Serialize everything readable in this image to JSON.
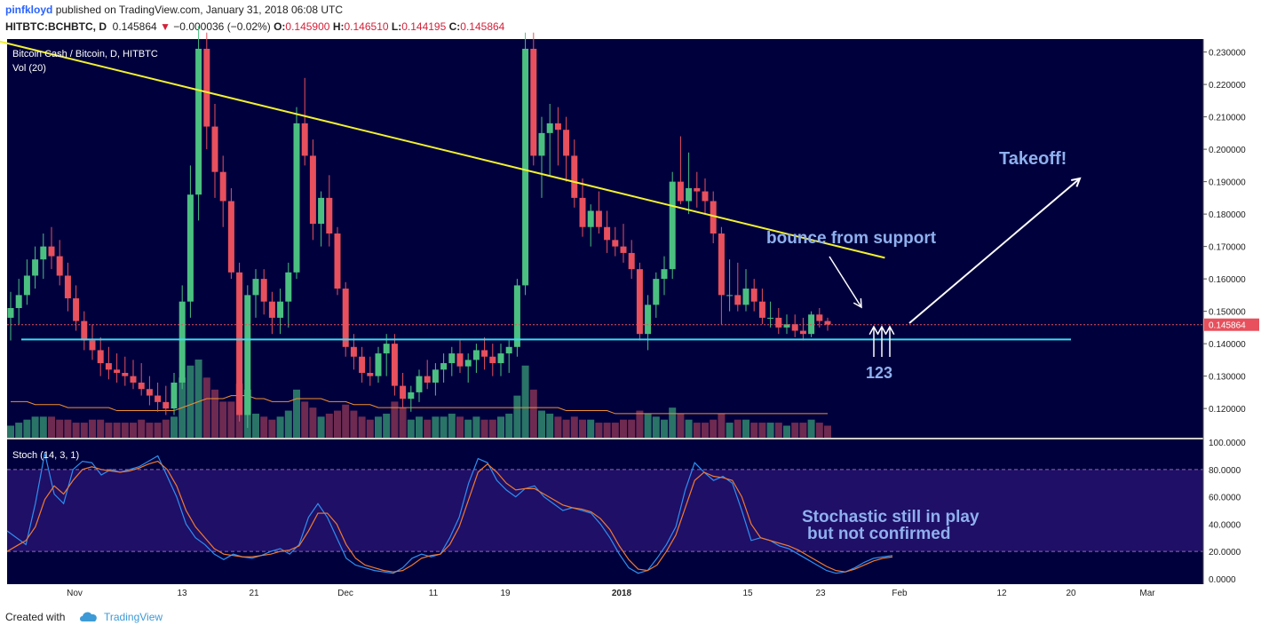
{
  "header": {
    "user": "pinfkloyd",
    "published": "published on TradingView.com, January 31, 2018 06:08 UTC",
    "symbol": "HITBTC:BCHBTC, D",
    "last": "0.145864",
    "change_arrow": "▼",
    "change": "−0.000036 (−0.02%)",
    "o_label": "O:",
    "o": "0.145900",
    "h_label": "H:",
    "h": "0.146510",
    "l_label": "L:",
    "l": "0.144195",
    "c_label": "C:",
    "c": "0.145864"
  },
  "colors": {
    "background": "#00003c",
    "up": "#4bbf80",
    "down": "#e7505c",
    "trendline": "#f2f230",
    "support": "#3bdbf1",
    "annotation": "#8fb0ee",
    "stoch_k": "#2f8ff0",
    "stoch_d": "#f07a30",
    "stoch_band": "#1f0f66"
  },
  "chart_data": [
    {
      "type": "candlestick",
      "title": "Bitcoin Cash / Bitcoin, D, HITBTC",
      "indicator_label": "Vol (20)",
      "ylim": [
        0.111,
        0.234
      ],
      "price_axis": [
        "0.230000",
        "0.220000",
        "0.210000",
        "0.200000",
        "0.190000",
        "0.180000",
        "0.170000",
        "0.160000",
        "0.150000",
        "0.140000",
        "0.130000",
        "0.120000"
      ],
      "last_price_label": "0.145864",
      "x_axis": [
        "Nov",
        "13",
        "21",
        "Dec",
        "11",
        "19",
        "2018",
        "15",
        "23",
        "Feb",
        "12",
        "20",
        "Mar"
      ],
      "candles": [
        [
          0.148,
          0.156,
          0.141,
          0.151,
          4
        ],
        [
          0.151,
          0.16,
          0.146,
          0.155,
          5
        ],
        [
          0.155,
          0.166,
          0.152,
          0.161,
          6
        ],
        [
          0.161,
          0.17,
          0.157,
          0.166,
          7
        ],
        [
          0.166,
          0.174,
          0.16,
          0.17,
          7
        ],
        [
          0.17,
          0.176,
          0.163,
          0.167,
          7
        ],
        [
          0.167,
          0.172,
          0.158,
          0.161,
          6
        ],
        [
          0.161,
          0.165,
          0.15,
          0.154,
          6
        ],
        [
          0.154,
          0.158,
          0.144,
          0.147,
          5
        ],
        [
          0.147,
          0.15,
          0.138,
          0.141,
          5
        ],
        [
          0.141,
          0.146,
          0.135,
          0.138,
          6
        ],
        [
          0.138,
          0.142,
          0.13,
          0.134,
          6
        ],
        [
          0.134,
          0.139,
          0.129,
          0.132,
          5
        ],
        [
          0.132,
          0.137,
          0.128,
          0.131,
          5
        ],
        [
          0.131,
          0.136,
          0.127,
          0.13,
          5
        ],
        [
          0.13,
          0.135,
          0.126,
          0.128,
          5
        ],
        [
          0.128,
          0.134,
          0.124,
          0.126,
          6
        ],
        [
          0.126,
          0.13,
          0.121,
          0.124,
          5
        ],
        [
          0.124,
          0.128,
          0.119,
          0.122,
          5
        ],
        [
          0.122,
          0.127,
          0.118,
          0.12,
          6
        ],
        [
          0.12,
          0.131,
          0.118,
          0.128,
          7
        ],
        [
          0.128,
          0.158,
          0.126,
          0.153,
          20
        ],
        [
          0.153,
          0.195,
          0.148,
          0.186,
          24
        ],
        [
          0.186,
          0.238,
          0.178,
          0.231,
          26
        ],
        [
          0.231,
          0.236,
          0.2,
          0.207,
          20
        ],
        [
          0.207,
          0.214,
          0.185,
          0.193,
          16
        ],
        [
          0.193,
          0.198,
          0.176,
          0.184,
          12
        ],
        [
          0.184,
          0.188,
          0.16,
          0.162,
          12
        ],
        [
          0.162,
          0.165,
          0.116,
          0.118,
          18
        ],
        [
          0.118,
          0.158,
          0.114,
          0.155,
          16
        ],
        [
          0.155,
          0.163,
          0.148,
          0.16,
          8
        ],
        [
          0.16,
          0.163,
          0.149,
          0.153,
          7
        ],
        [
          0.153,
          0.156,
          0.143,
          0.148,
          6
        ],
        [
          0.148,
          0.157,
          0.143,
          0.153,
          7
        ],
        [
          0.153,
          0.165,
          0.145,
          0.162,
          9
        ],
        [
          0.162,
          0.213,
          0.16,
          0.208,
          16
        ],
        [
          0.208,
          0.222,
          0.195,
          0.198,
          12
        ],
        [
          0.198,
          0.203,
          0.172,
          0.177,
          10
        ],
        [
          0.177,
          0.187,
          0.17,
          0.185,
          7
        ],
        [
          0.185,
          0.192,
          0.17,
          0.174,
          8
        ],
        [
          0.174,
          0.176,
          0.155,
          0.157,
          9
        ],
        [
          0.157,
          0.159,
          0.136,
          0.139,
          11
        ],
        [
          0.139,
          0.143,
          0.132,
          0.136,
          9
        ],
        [
          0.136,
          0.139,
          0.128,
          0.131,
          7
        ],
        [
          0.131,
          0.136,
          0.127,
          0.13,
          6
        ],
        [
          0.13,
          0.139,
          0.128,
          0.137,
          7
        ],
        [
          0.137,
          0.143,
          0.13,
          0.14,
          8
        ],
        [
          0.14,
          0.143,
          0.124,
          0.127,
          12
        ],
        [
          0.127,
          0.131,
          0.12,
          0.123,
          10
        ],
        [
          0.123,
          0.127,
          0.119,
          0.125,
          6
        ],
        [
          0.125,
          0.132,
          0.122,
          0.13,
          7
        ],
        [
          0.13,
          0.135,
          0.126,
          0.128,
          6
        ],
        [
          0.128,
          0.134,
          0.124,
          0.132,
          7
        ],
        [
          0.132,
          0.137,
          0.128,
          0.134,
          7
        ],
        [
          0.134,
          0.139,
          0.13,
          0.137,
          8
        ],
        [
          0.137,
          0.141,
          0.131,
          0.133,
          7
        ],
        [
          0.133,
          0.137,
          0.128,
          0.135,
          6
        ],
        [
          0.135,
          0.14,
          0.131,
          0.138,
          7
        ],
        [
          0.138,
          0.142,
          0.132,
          0.136,
          6
        ],
        [
          0.136,
          0.14,
          0.13,
          0.134,
          6
        ],
        [
          0.134,
          0.14,
          0.13,
          0.137,
          7
        ],
        [
          0.137,
          0.141,
          0.131,
          0.139,
          8
        ],
        [
          0.139,
          0.16,
          0.136,
          0.158,
          14
        ],
        [
          0.158,
          0.236,
          0.155,
          0.231,
          24
        ],
        [
          0.231,
          0.236,
          0.195,
          0.198,
          16
        ],
        [
          0.198,
          0.21,
          0.185,
          0.205,
          9
        ],
        [
          0.205,
          0.214,
          0.192,
          0.208,
          8
        ],
        [
          0.208,
          0.213,
          0.195,
          0.206,
          7
        ],
        [
          0.206,
          0.21,
          0.19,
          0.198,
          6
        ],
        [
          0.198,
          0.203,
          0.182,
          0.185,
          7
        ],
        [
          0.185,
          0.191,
          0.173,
          0.176,
          6
        ],
        [
          0.176,
          0.183,
          0.17,
          0.181,
          6
        ],
        [
          0.181,
          0.187,
          0.174,
          0.176,
          5
        ],
        [
          0.176,
          0.181,
          0.168,
          0.172,
          5
        ],
        [
          0.172,
          0.176,
          0.167,
          0.17,
          5
        ],
        [
          0.17,
          0.177,
          0.165,
          0.168,
          6
        ],
        [
          0.168,
          0.172,
          0.16,
          0.163,
          6
        ],
        [
          0.163,
          0.165,
          0.141,
          0.143,
          9
        ],
        [
          0.143,
          0.155,
          0.138,
          0.152,
          8
        ],
        [
          0.152,
          0.162,
          0.148,
          0.16,
          7
        ],
        [
          0.16,
          0.167,
          0.155,
          0.163,
          6
        ],
        [
          0.163,
          0.193,
          0.16,
          0.19,
          10
        ],
        [
          0.19,
          0.204,
          0.183,
          0.184,
          8
        ],
        [
          0.184,
          0.199,
          0.18,
          0.188,
          6
        ],
        [
          0.188,
          0.193,
          0.182,
          0.187,
          5
        ],
        [
          0.187,
          0.191,
          0.18,
          0.184,
          5
        ],
        [
          0.184,
          0.187,
          0.171,
          0.174,
          6
        ],
        [
          0.174,
          0.176,
          0.146,
          0.155,
          8
        ],
        [
          0.155,
          0.166,
          0.15,
          0.155,
          5
        ],
        [
          0.155,
          0.165,
          0.15,
          0.152,
          6
        ],
        [
          0.152,
          0.163,
          0.15,
          0.157,
          6
        ],
        [
          0.157,
          0.16,
          0.15,
          0.153,
          5
        ],
        [
          0.153,
          0.157,
          0.146,
          0.148,
          5
        ],
        [
          0.148,
          0.153,
          0.145,
          0.148,
          5
        ],
        [
          0.148,
          0.151,
          0.143,
          0.145,
          5
        ],
        [
          0.145,
          0.149,
          0.143,
          0.146,
          4
        ],
        [
          0.146,
          0.149,
          0.142,
          0.144,
          5
        ],
        [
          0.144,
          0.148,
          0.141,
          0.143,
          5
        ],
        [
          0.143,
          0.15,
          0.142,
          0.149,
          6
        ],
        [
          0.149,
          0.151,
          0.145,
          0.147,
          5
        ],
        [
          0.147,
          0.148,
          0.144,
          0.1459,
          4
        ]
      ],
      "volume_ma": [
        12,
        12,
        12,
        11,
        11,
        11,
        11,
        10,
        10,
        10,
        10,
        10,
        10,
        9,
        9,
        9,
        9,
        9,
        9,
        9,
        9,
        10,
        11,
        12,
        13,
        13,
        13,
        14,
        14,
        14,
        13,
        13,
        12,
        12,
        12,
        13,
        13,
        13,
        13,
        12,
        12,
        12,
        11,
        11,
        11,
        10,
        10,
        10,
        10,
        10,
        10,
        10,
        10,
        10,
        10,
        10,
        10,
        10,
        10,
        10,
        10,
        10,
        10,
        10,
        10,
        10,
        10,
        10,
        9,
        9,
        9,
        9,
        9,
        9,
        8,
        8,
        8,
        8,
        8,
        8,
        8,
        8,
        8,
        8,
        8,
        8,
        8,
        8,
        8,
        8,
        8,
        8,
        8,
        8,
        8,
        8,
        8,
        8,
        8,
        8,
        8
      ],
      "trendline": [
        [
          -5,
          0.2355
        ],
        [
          107,
          0.1665
        ]
      ],
      "support_level": 0.1413,
      "annotations": {
        "takeoff": "Takeoff!",
        "bounce": "bounce from support",
        "markers": "123"
      }
    },
    {
      "type": "line",
      "title": "Stoch (14, 3, 1)",
      "ylim": [
        -4,
        102
      ],
      "y_axis": [
        "100.0000",
        "80.0000",
        "60.0000",
        "40.0000",
        "20.0000",
        "0.0000"
      ],
      "band": [
        20,
        80
      ],
      "series": [
        {
          "values": [
            35,
            30,
            25,
            55,
            92,
            62,
            55,
            80,
            86,
            85,
            76,
            80,
            78,
            80,
            82,
            86,
            90,
            75,
            60,
            40,
            30,
            25,
            18,
            14,
            18,
            16,
            15,
            17,
            20,
            22,
            18,
            25,
            45,
            55,
            45,
            30,
            15,
            10,
            8,
            6,
            5,
            4,
            8,
            15,
            18,
            16,
            18,
            30,
            45,
            70,
            88,
            85,
            72,
            65,
            60,
            66,
            68,
            60,
            55,
            50,
            52,
            50,
            48,
            40,
            30,
            18,
            8,
            4,
            6,
            15,
            25,
            38,
            65,
            85,
            78,
            72,
            75,
            70,
            50,
            28,
            30,
            28,
            24,
            22,
            18,
            14,
            10,
            6,
            4,
            5,
            8,
            12,
            15,
            16,
            17
          ]
        },
        {
          "values": [
            20,
            24,
            28,
            38,
            58,
            68,
            62,
            72,
            80,
            82,
            80,
            79,
            78,
            79,
            81,
            84,
            86,
            80,
            68,
            50,
            38,
            30,
            22,
            18,
            17,
            16,
            16,
            17,
            18,
            20,
            21,
            24,
            35,
            48,
            48,
            40,
            25,
            15,
            10,
            8,
            6,
            5,
            6,
            10,
            15,
            17,
            18,
            25,
            38,
            58,
            78,
            84,
            78,
            70,
            65,
            66,
            66,
            62,
            58,
            54,
            52,
            51,
            49,
            44,
            36,
            24,
            14,
            7,
            6,
            10,
            20,
            32,
            52,
            72,
            78,
            75,
            74,
            72,
            60,
            40,
            30,
            28,
            26,
            24,
            21,
            17,
            13,
            9,
            6,
            5,
            7,
            10,
            13,
            15,
            16
          ]
        }
      ]
    }
  ],
  "overlay_text": {
    "stoch_note_1": "Stochastic still in play",
    "stoch_note_2": "but not confirmed"
  },
  "footer": {
    "created_with": "Created with",
    "brand": "TradingView"
  }
}
